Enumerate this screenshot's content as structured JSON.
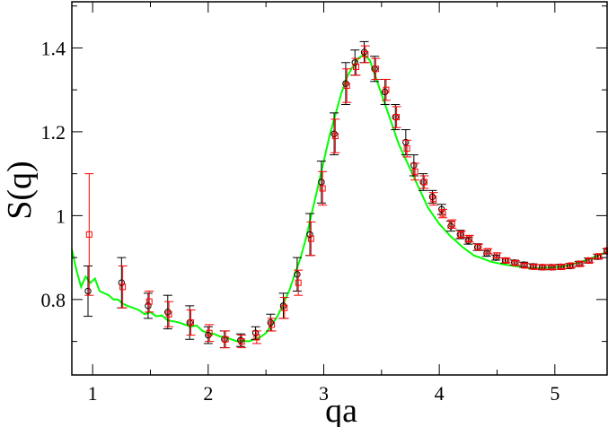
{
  "chart_data": {
    "type": "scatter",
    "xlabel": "qa",
    "ylabel": "S(q)",
    "xlim": [
      0.82,
      5.46
    ],
    "ylim": [
      0.62,
      1.51
    ],
    "x_ticks": [
      {
        "value": 1,
        "label": "1"
      },
      {
        "value": 2,
        "label": "2"
      },
      {
        "value": 3,
        "label": "3"
      },
      {
        "value": 4,
        "label": "4"
      },
      {
        "value": 5,
        "label": "5"
      }
    ],
    "y_ticks": [
      {
        "value": 0.8,
        "label": "0.8"
      },
      {
        "value": 1.0,
        "label": "1"
      },
      {
        "value": 1.2,
        "label": "1.2"
      },
      {
        "value": 1.4,
        "label": "1.4"
      }
    ],
    "grid": false,
    "series": [
      {
        "kind": "line",
        "color": "#00ff00",
        "x": [
          0.82,
          0.86,
          0.9,
          0.94,
          0.98,
          1.02,
          1.06,
          1.1,
          1.14,
          1.18,
          1.22,
          1.26,
          1.3,
          1.35,
          1.4,
          1.45,
          1.5,
          1.55,
          1.6,
          1.65,
          1.7,
          1.75,
          1.8,
          1.85,
          1.9,
          1.95,
          2.0,
          2.05,
          2.1,
          2.15,
          2.2,
          2.25,
          2.3,
          2.35,
          2.4,
          2.45,
          2.5,
          2.55,
          2.6,
          2.65,
          2.7,
          2.75,
          2.8,
          2.85,
          2.9,
          2.95,
          3.0,
          3.05,
          3.1,
          3.15,
          3.2,
          3.25,
          3.3,
          3.35,
          3.4,
          3.45,
          3.5,
          3.55,
          3.6,
          3.65,
          3.7,
          3.75,
          3.8,
          3.85,
          3.9,
          3.95,
          4.0,
          4.05,
          4.1,
          4.15,
          4.2,
          4.25,
          4.3,
          4.35,
          4.4,
          4.45,
          4.5,
          4.55,
          4.6,
          4.65,
          4.7,
          4.75,
          4.8,
          4.85,
          4.9,
          4.95,
          5.0,
          5.05,
          5.1,
          5.15,
          5.2,
          5.25,
          5.3,
          5.35,
          5.4,
          5.46
        ],
        "y": [
          0.92,
          0.87,
          0.83,
          0.855,
          0.84,
          0.85,
          0.82,
          0.815,
          0.81,
          0.8,
          0.8,
          0.79,
          0.785,
          0.78,
          0.775,
          0.765,
          0.77,
          0.76,
          0.762,
          0.75,
          0.748,
          0.745,
          0.74,
          0.735,
          0.738,
          0.725,
          0.72,
          0.718,
          0.712,
          0.71,
          0.705,
          0.7,
          0.702,
          0.7,
          0.705,
          0.71,
          0.72,
          0.74,
          0.76,
          0.79,
          0.82,
          0.86,
          0.9,
          0.95,
          1.01,
          1.07,
          1.13,
          1.19,
          1.24,
          1.29,
          1.33,
          1.355,
          1.375,
          1.385,
          1.37,
          1.33,
          1.29,
          1.25,
          1.21,
          1.17,
          1.14,
          1.11,
          1.08,
          1.05,
          1.02,
          1.0,
          0.98,
          0.965,
          0.95,
          0.938,
          0.925,
          0.915,
          0.905,
          0.9,
          0.895,
          0.89,
          0.887,
          0.884,
          0.882,
          0.88,
          0.878,
          0.876,
          0.875,
          0.875,
          0.875,
          0.876,
          0.877,
          0.878,
          0.88,
          0.884,
          0.888,
          0.892,
          0.897,
          0.902,
          0.908,
          0.915
        ]
      },
      {
        "kind": "points",
        "marker": "circle",
        "color": "#000000",
        "x": [
          0.96,
          1.25,
          1.48,
          1.65,
          1.84,
          2.0,
          2.14,
          2.28,
          2.41,
          2.54,
          2.65,
          2.77,
          2.88,
          2.98,
          3.09,
          3.19,
          3.27,
          3.35,
          3.44,
          3.53,
          3.62,
          3.71,
          3.78,
          3.86,
          3.94,
          4.02,
          4.1,
          4.18,
          4.25,
          4.33,
          4.41,
          4.49,
          4.57,
          4.65,
          4.73,
          4.81,
          4.89,
          4.97,
          5.05,
          5.13,
          5.21,
          5.29,
          5.37,
          5.45
        ],
        "y": [
          0.82,
          0.84,
          0.785,
          0.77,
          0.745,
          0.715,
          0.705,
          0.703,
          0.72,
          0.745,
          0.785,
          0.86,
          0.955,
          1.08,
          1.195,
          1.315,
          1.365,
          1.39,
          1.35,
          1.295,
          1.235,
          1.175,
          1.12,
          1.08,
          1.045,
          1.015,
          0.975,
          0.955,
          0.94,
          0.925,
          0.91,
          0.9,
          0.893,
          0.888,
          0.883,
          0.879,
          0.877,
          0.877,
          0.878,
          0.88,
          0.885,
          0.893,
          0.902,
          0.915
        ],
        "yerr": [
          0.06,
          0.06,
          0.03,
          0.04,
          0.04,
          0.02,
          0.02,
          0.015,
          0.015,
          0.02,
          0.03,
          0.04,
          0.05,
          0.05,
          0.05,
          0.05,
          0.03,
          0.025,
          0.03,
          0.03,
          0.03,
          0.03,
          0.025,
          0.02,
          0.015,
          0.012,
          0.012,
          0.01,
          0.008,
          0.008,
          0.007,
          0.006,
          0.006,
          0.006,
          0.006,
          0.006,
          0.006,
          0.006,
          0.006,
          0.006,
          0.006,
          0.006,
          0.006,
          0.006
        ]
      },
      {
        "kind": "points",
        "marker": "square",
        "color": "#ff0000",
        "x": [
          0.97,
          1.26,
          1.49,
          1.66,
          1.85,
          2.01,
          2.15,
          2.29,
          2.42,
          2.55,
          2.66,
          2.78,
          2.89,
          2.99,
          3.1,
          3.2,
          3.28,
          3.36,
          3.45,
          3.54,
          3.63,
          3.72,
          3.79,
          3.87,
          3.95,
          4.03,
          4.11,
          4.19,
          4.26,
          4.34,
          4.42,
          4.5,
          4.58,
          4.66,
          4.74,
          4.82,
          4.9,
          4.98,
          5.06,
          5.14,
          5.22,
          5.3,
          5.38,
          5.46
        ],
        "y": [
          0.955,
          0.83,
          0.795,
          0.765,
          0.745,
          0.72,
          0.705,
          0.7,
          0.71,
          0.74,
          0.78,
          0.84,
          0.945,
          1.065,
          1.19,
          1.31,
          1.355,
          1.385,
          1.35,
          1.3,
          1.235,
          1.16,
          1.105,
          1.08,
          1.04,
          1.005,
          0.98,
          0.955,
          0.945,
          0.925,
          0.915,
          0.905,
          0.893,
          0.887,
          0.881,
          0.878,
          0.877,
          0.877,
          0.878,
          0.881,
          0.885,
          0.893,
          0.903,
          0.917
        ],
        "yerr": [
          0.145,
          0.05,
          0.025,
          0.03,
          0.03,
          0.02,
          0.02,
          0.015,
          0.015,
          0.015,
          0.025,
          0.03,
          0.04,
          0.04,
          0.04,
          0.04,
          0.02,
          0.02,
          0.025,
          0.025,
          0.025,
          0.02,
          0.02,
          0.015,
          0.015,
          0.01,
          0.01,
          0.008,
          0.008,
          0.007,
          0.006,
          0.006,
          0.005,
          0.005,
          0.005,
          0.005,
          0.005,
          0.005,
          0.005,
          0.005,
          0.005,
          0.005,
          0.005,
          0.005
        ]
      }
    ]
  }
}
